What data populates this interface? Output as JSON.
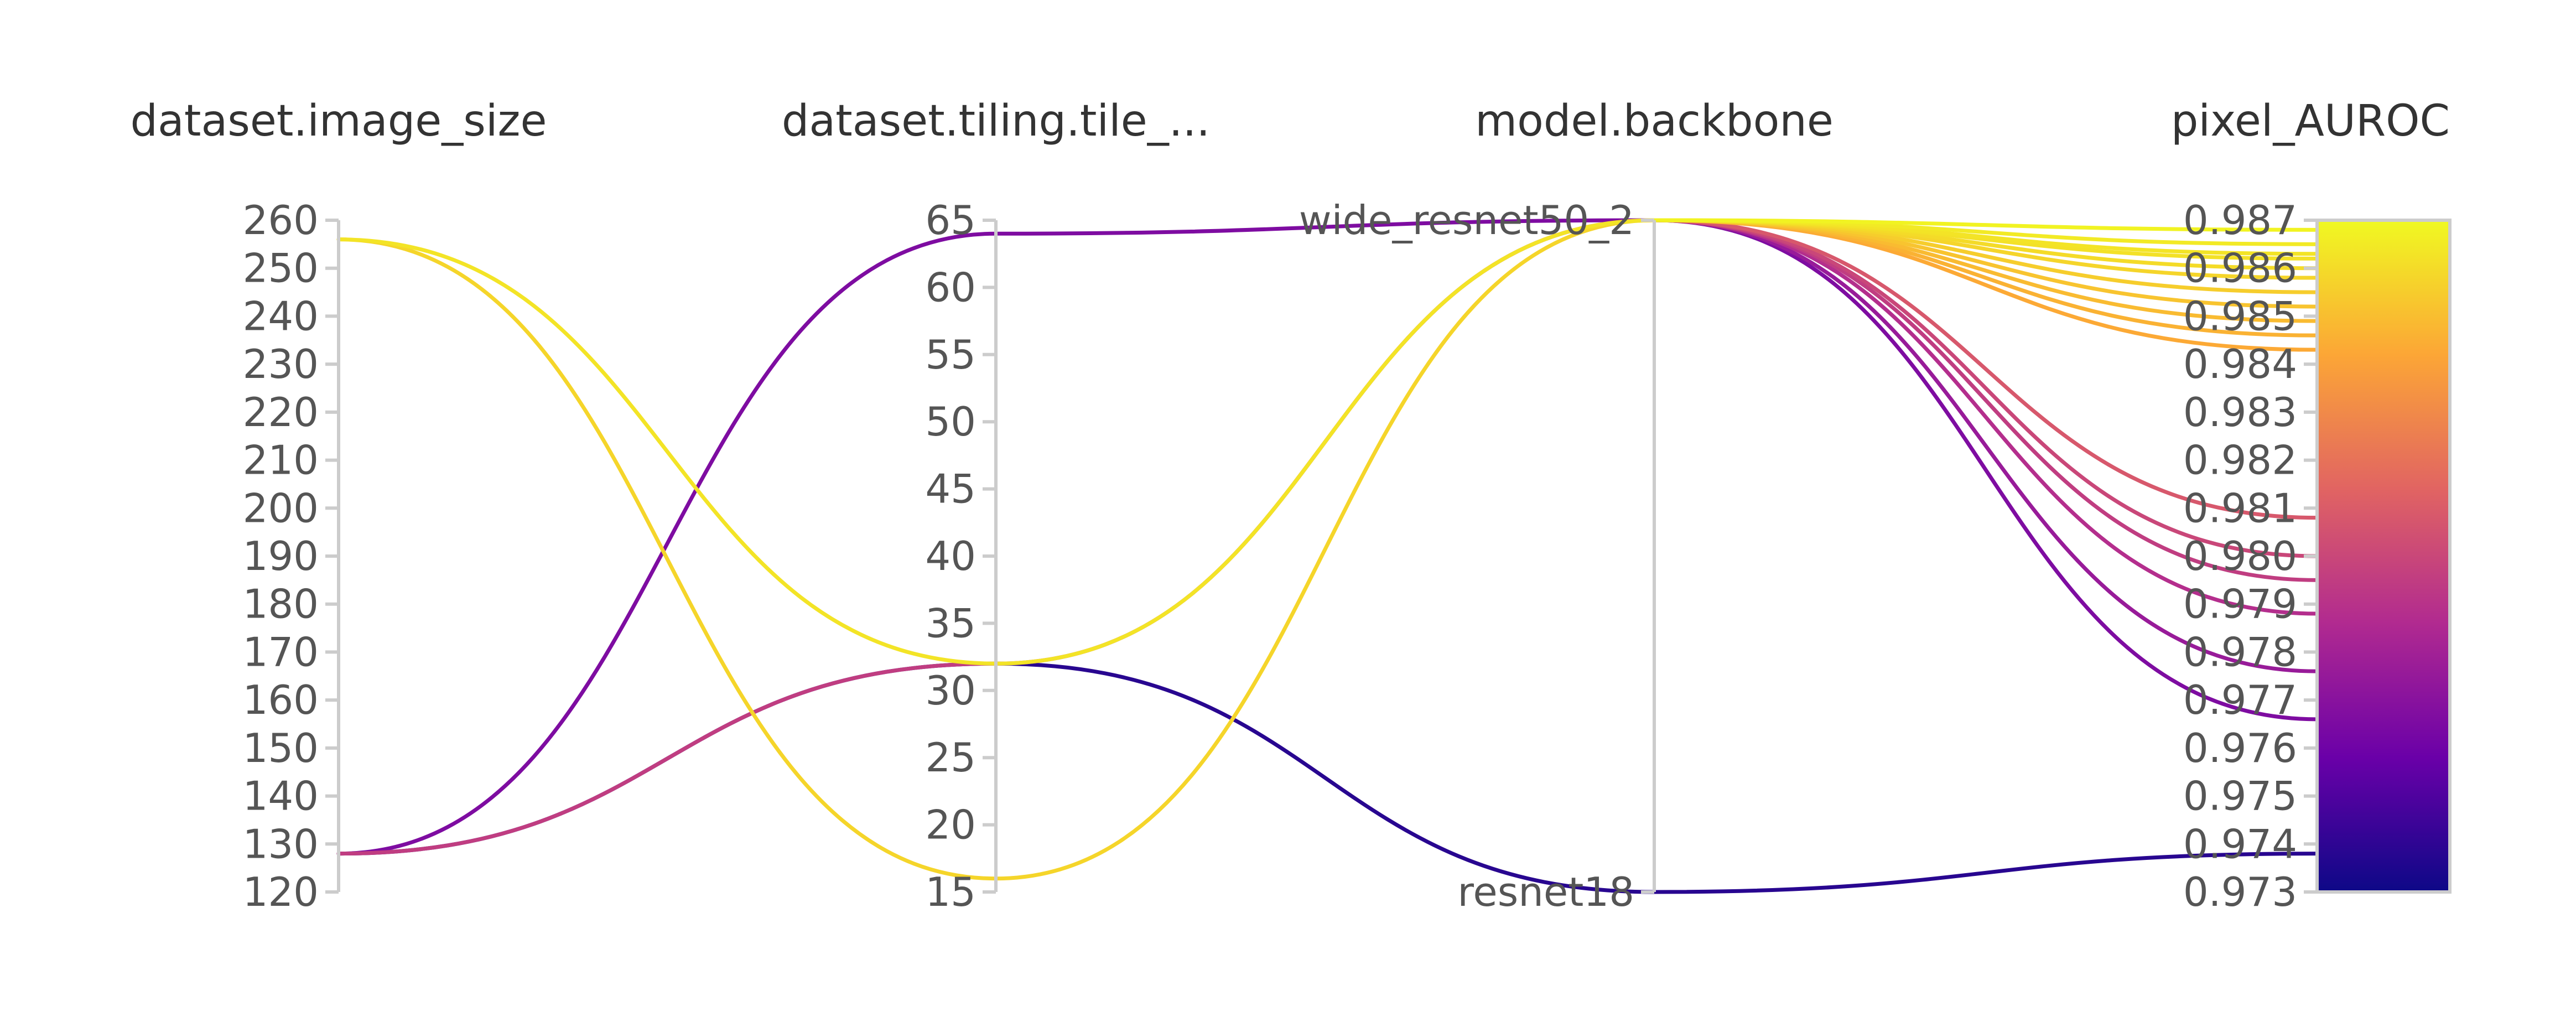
{
  "chart_data": {
    "type": "parallel_coordinates",
    "axes": [
      {
        "key": "image_size",
        "label": "dataset.image_size",
        "kind": "numeric",
        "range": [
          120,
          260
        ],
        "ticks": [
          120,
          130,
          140,
          150,
          160,
          170,
          180,
          190,
          200,
          210,
          220,
          230,
          240,
          250,
          260
        ]
      },
      {
        "key": "tile_size",
        "label": "dataset.tiling.tile_...",
        "kind": "numeric",
        "range": [
          15,
          65
        ],
        "ticks": [
          15,
          20,
          25,
          30,
          35,
          40,
          45,
          50,
          55,
          60,
          65
        ]
      },
      {
        "key": "backbone",
        "label": "model.backbone",
        "kind": "categorical",
        "categories": [
          "resnet18",
          "wide_resnet50_2"
        ]
      },
      {
        "key": "pixel_AUROC",
        "label": "pixel_AUROC",
        "kind": "numeric",
        "range": [
          0.973,
          0.987
        ],
        "ticks": [
          "0.973",
          "0.974",
          "0.975",
          "0.976",
          "0.977",
          "0.978",
          "0.979",
          "0.980",
          "0.981",
          "0.982",
          "0.983",
          "0.984",
          "0.985",
          "0.986",
          "0.987"
        ],
        "colorbar": true
      }
    ],
    "colorscale": [
      "#0d0887",
      "#6a00a8",
      "#b12a90",
      "#e16462",
      "#fca636",
      "#f0f921"
    ],
    "runs": [
      {
        "image_size": 256,
        "tile_size": 32,
        "backbone": "wide_resnet50_2",
        "pixel_AUROC": 0.9863
      },
      {
        "image_size": 256,
        "tile_size": 16,
        "backbone": "wide_resnet50_2",
        "pixel_AUROC": 0.9858
      },
      {
        "image_size": 128,
        "tile_size": 64,
        "backbone": "wide_resnet50_2",
        "pixel_AUROC": 0.9766
      },
      {
        "image_size": 128,
        "tile_size": 32,
        "backbone": "resnet18",
        "pixel_AUROC": 0.9738
      },
      {
        "image_size": 128,
        "tile_size": 32,
        "backbone": "wide_resnet50_2",
        "pixel_AUROC": 0.9795
      },
      {
        "backbone": "wide_resnet50_2",
        "pixel_AUROC": 0.9868
      },
      {
        "backbone": "wide_resnet50_2",
        "pixel_AUROC": 0.9865
      },
      {
        "backbone": "wide_resnet50_2",
        "pixel_AUROC": 0.9862
      },
      {
        "backbone": "wide_resnet50_2",
        "pixel_AUROC": 0.986
      },
      {
        "backbone": "wide_resnet50_2",
        "pixel_AUROC": 0.9855
      },
      {
        "backbone": "wide_resnet50_2",
        "pixel_AUROC": 0.9852
      },
      {
        "backbone": "wide_resnet50_2",
        "pixel_AUROC": 0.9849
      },
      {
        "backbone": "wide_resnet50_2",
        "pixel_AUROC": 0.9846
      },
      {
        "backbone": "wide_resnet50_2",
        "pixel_AUROC": 0.9843
      },
      {
        "backbone": "wide_resnet50_2",
        "pixel_AUROC": 0.9808
      },
      {
        "backbone": "wide_resnet50_2",
        "pixel_AUROC": 0.98
      },
      {
        "backbone": "wide_resnet50_2",
        "pixel_AUROC": 0.9788
      },
      {
        "backbone": "wide_resnet50_2",
        "pixel_AUROC": 0.9776
      }
    ]
  }
}
